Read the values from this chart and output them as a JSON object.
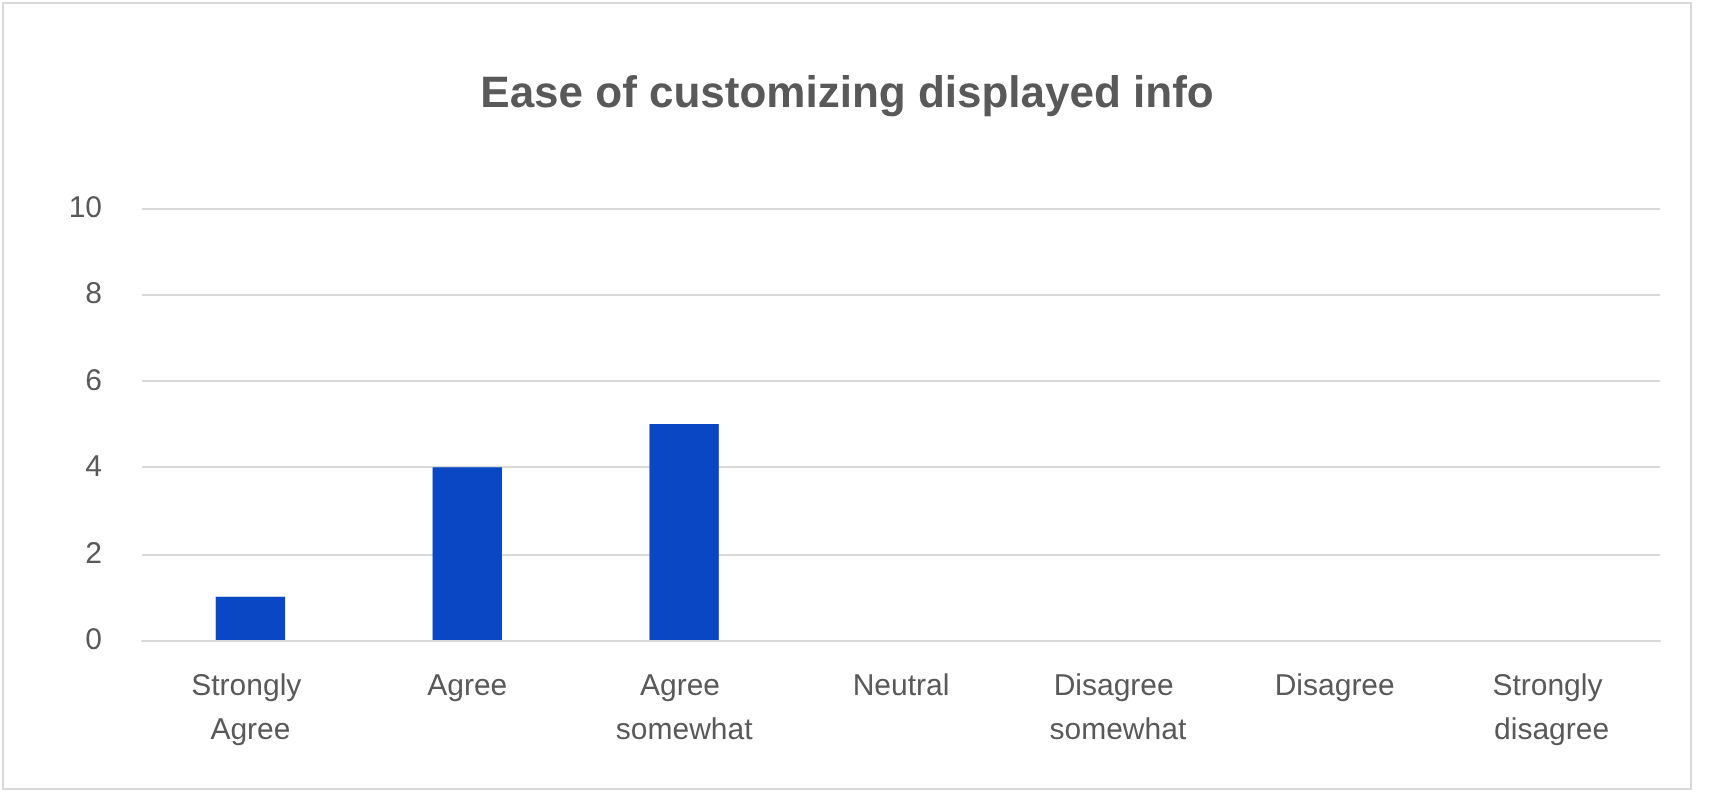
{
  "chart_data": {
    "type": "bar",
    "title": "Ease of customizing displayed info",
    "categories": [
      "Strongly Agree",
      "Agree",
      "Agree somewhat",
      "Neutral",
      "Disagree somewhat",
      "Disagree",
      "Strongly disagree"
    ],
    "values": [
      1,
      4,
      5,
      0,
      0,
      0,
      0
    ],
    "color": "#0a47c4",
    "ylim": [
      0,
      10
    ],
    "yticks": [
      0,
      2,
      4,
      6,
      8,
      10
    ],
    "grid": "y"
  }
}
